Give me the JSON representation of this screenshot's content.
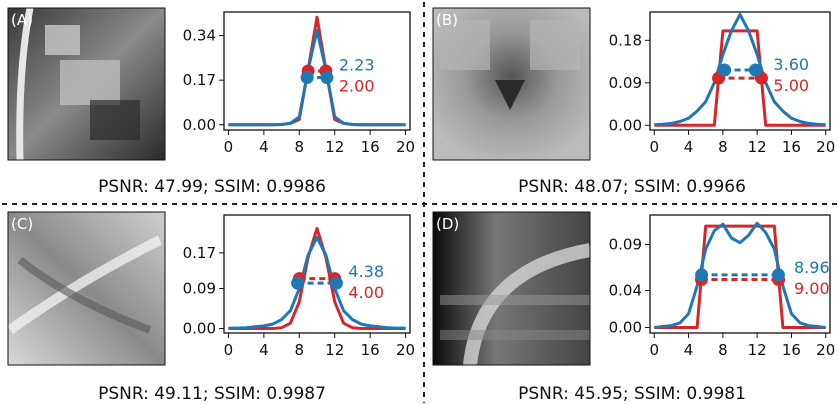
{
  "colors": {
    "red": "#d62728",
    "blue": "#1f77b4",
    "divider": "#222222"
  },
  "chart_data": [
    {
      "type": "line",
      "panel": "(A)",
      "caption": "PSNR: 47.99; SSIM: 0.9986",
      "xticks": [
        "0",
        "4",
        "8",
        "12",
        "16",
        "20"
      ],
      "yticks": [
        "0.00",
        "0.17",
        "0.34"
      ],
      "xlim": [
        -0.5,
        20.5
      ],
      "ylim": [
        -0.02,
        0.43
      ],
      "x": [
        0,
        1,
        2,
        3,
        4,
        5,
        6,
        7,
        8,
        9,
        10,
        11,
        12,
        13,
        14,
        15,
        16,
        17,
        18,
        19,
        20
      ],
      "series": [
        {
          "color": "red",
          "values": [
            0,
            0,
            0,
            0,
            0,
            0,
            0.001,
            0.005,
            0.02,
            0.21,
            0.41,
            0.21,
            0.02,
            0.005,
            0.001,
            0,
            0,
            0,
            0,
            0,
            0
          ]
        },
        {
          "color": "blue",
          "values": [
            0,
            0,
            0,
            0,
            0,
            0,
            0.001,
            0.006,
            0.03,
            0.21,
            0.36,
            0.21,
            0.03,
            0.006,
            0.001,
            0,
            0,
            0,
            0,
            0,
            0
          ]
        }
      ],
      "fwhm": [
        {
          "color": "red",
          "y": 0.205,
          "half_width": 1.0,
          "label": "2.00"
        },
        {
          "color": "blue",
          "y": 0.18,
          "half_width": 1.115,
          "label": "2.23"
        }
      ]
    },
    {
      "type": "line",
      "panel": "(B)",
      "caption": "PSNR: 48.07; SSIM: 0.9966",
      "xticks": [
        "0",
        "4",
        "8",
        "12",
        "16",
        "20"
      ],
      "yticks": [
        "0.00",
        "0.09",
        "0.18"
      ],
      "xlim": [
        -0.5,
        20.5
      ],
      "ylim": [
        -0.01,
        0.24
      ],
      "x": [
        0,
        1,
        2,
        3,
        4,
        5,
        6,
        7,
        8,
        9,
        10,
        11,
        12,
        13,
        14,
        15,
        16,
        17,
        18,
        19,
        20
      ],
      "series": [
        {
          "color": "red",
          "values": [
            0,
            0,
            0,
            0,
            0,
            0,
            0,
            0,
            0.2,
            0.2,
            0.2,
            0.2,
            0.2,
            0,
            0,
            0,
            0,
            0,
            0,
            0,
            0
          ]
        },
        {
          "color": "blue",
          "values": [
            0.001,
            0.002,
            0.004,
            0.008,
            0.015,
            0.03,
            0.05,
            0.09,
            0.15,
            0.2,
            0.235,
            0.2,
            0.15,
            0.09,
            0.05,
            0.03,
            0.015,
            0.008,
            0.004,
            0.002,
            0.001
          ]
        }
      ],
      "fwhm": [
        {
          "color": "red",
          "y": 0.1,
          "half_width": 2.5,
          "label": "5.00"
        },
        {
          "color": "blue",
          "y": 0.117,
          "half_width": 1.8,
          "label": "3.60"
        }
      ]
    },
    {
      "type": "line",
      "panel": "(C)",
      "caption": "PSNR: 49.11; SSIM: 0.9987",
      "xticks": [
        "0",
        "4",
        "8",
        "12",
        "16",
        "20"
      ],
      "yticks": [
        "0.00",
        "0.09",
        "0.17"
      ],
      "xlim": [
        -0.5,
        20.5
      ],
      "ylim": [
        -0.01,
        0.255
      ],
      "x": [
        0,
        1,
        2,
        3,
        4,
        5,
        6,
        7,
        8,
        9,
        10,
        11,
        12,
        13,
        14,
        15,
        16,
        17,
        18,
        19,
        20
      ],
      "series": [
        {
          "color": "red",
          "values": [
            0,
            0,
            0,
            0,
            0,
            0,
            0.002,
            0.012,
            0.06,
            0.16,
            0.225,
            0.16,
            0.06,
            0.012,
            0.002,
            0,
            0,
            0,
            0,
            0,
            0
          ]
        },
        {
          "color": "blue",
          "values": [
            0.001,
            0.001,
            0.002,
            0.004,
            0.006,
            0.01,
            0.02,
            0.04,
            0.09,
            0.165,
            0.205,
            0.165,
            0.09,
            0.04,
            0.02,
            0.01,
            0.006,
            0.004,
            0.002,
            0.001,
            0.001
          ]
        }
      ],
      "fwhm": [
        {
          "color": "red",
          "y": 0.112,
          "half_width": 2.0,
          "label": "4.00"
        },
        {
          "color": "blue",
          "y": 0.102,
          "half_width": 2.19,
          "label": "4.38"
        }
      ]
    },
    {
      "type": "line",
      "panel": "(D)",
      "caption": "PSNR: 45.95; SSIM: 0.9981",
      "xticks": [
        "0",
        "4",
        "8",
        "12",
        "16",
        "20"
      ],
      "yticks": [
        "0.00",
        "0.04",
        "0.09"
      ],
      "xlim": [
        -0.5,
        20.5
      ],
      "ylim": [
        -0.006,
        0.122
      ],
      "x": [
        0,
        1,
        2,
        3,
        4,
        5,
        6,
        7,
        8,
        9,
        10,
        11,
        12,
        13,
        14,
        15,
        16,
        17,
        18,
        19,
        20
      ],
      "series": [
        {
          "color": "red",
          "values": [
            0,
            0,
            0,
            0,
            0,
            0,
            0.11,
            0.11,
            0.11,
            0.11,
            0.11,
            0.11,
            0.11,
            0.11,
            0.11,
            0,
            0,
            0,
            0,
            0,
            0
          ]
        },
        {
          "color": "blue",
          "values": [
            0,
            0.001,
            0.002,
            0.005,
            0.015,
            0.045,
            0.085,
            0.105,
            0.112,
            0.097,
            0.092,
            0.1,
            0.113,
            0.103,
            0.085,
            0.045,
            0.015,
            0.005,
            0.002,
            0.001,
            0
          ]
        }
      ],
      "fwhm": [
        {
          "color": "red",
          "y": 0.052,
          "half_width": 4.5,
          "label": "9.00"
        },
        {
          "color": "blue",
          "y": 0.057,
          "half_width": 4.48,
          "label": "8.96"
        }
      ]
    }
  ]
}
